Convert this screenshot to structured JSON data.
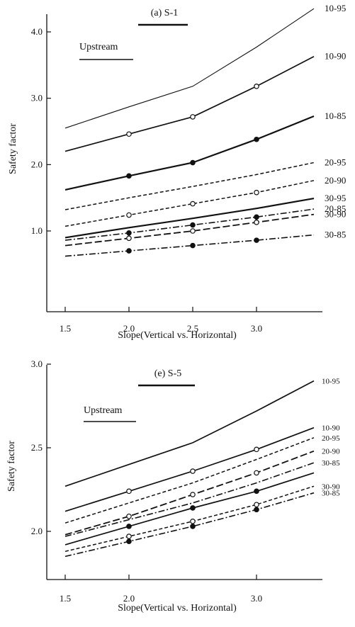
{
  "chart_data": [
    {
      "type": "line",
      "title": "(a) S-1",
      "annotation": "Upstream",
      "xlabel": "Slope(Vertical vs. Horizontal)",
      "ylabel": "Safety factor",
      "x_ticks": [
        "1.5",
        "2.0",
        "2.5",
        "3.0"
      ],
      "y_ticks": [
        "1.0",
        "2.0",
        "3.0",
        "4.0"
      ],
      "xlim": [
        1.3,
        3.5
      ],
      "ylim": [
        0.0,
        4.15
      ],
      "legend": "series names printed at right end of each line",
      "series": [
        {
          "name": "10-95",
          "style": "solid-thin",
          "marker": "none",
          "x": [
            1.5,
            2.0,
            2.5,
            3.0,
            3.45
          ],
          "values": [
            2.55,
            2.87,
            3.18,
            3.77,
            4.35
          ]
        },
        {
          "name": "10-90",
          "style": "solid",
          "marker": "open",
          "x": [
            1.5,
            2.0,
            2.5,
            3.0,
            3.45
          ],
          "values": [
            2.2,
            2.46,
            2.72,
            3.18,
            3.63
          ]
        },
        {
          "name": "10-85",
          "style": "solid-thick",
          "marker": "filled",
          "x": [
            1.5,
            2.0,
            2.5,
            3.0,
            3.45
          ],
          "values": [
            1.62,
            1.83,
            2.03,
            2.38,
            2.73
          ]
        },
        {
          "name": "20-95",
          "style": "dashed",
          "marker": "none",
          "x": [
            1.5,
            2.0,
            2.5,
            3.0,
            3.45
          ],
          "values": [
            1.32,
            1.5,
            1.67,
            1.85,
            2.03
          ]
        },
        {
          "name": "20-90",
          "style": "dashed",
          "marker": "open",
          "x": [
            1.5,
            2.0,
            2.5,
            3.0,
            3.45
          ],
          "values": [
            1.07,
            1.24,
            1.41,
            1.58,
            1.76
          ]
        },
        {
          "name": "30-95",
          "style": "solid-thick",
          "marker": "none",
          "x": [
            1.5,
            2.0,
            2.5,
            3.0,
            3.45
          ],
          "values": [
            0.9,
            1.05,
            1.19,
            1.34,
            1.49
          ]
        },
        {
          "name": "20-85",
          "style": "dash-dot",
          "marker": "filled",
          "x": [
            1.5,
            2.0,
            2.5,
            3.0,
            3.45
          ],
          "values": [
            0.86,
            0.97,
            1.09,
            1.21,
            1.33
          ]
        },
        {
          "name": "30-90",
          "style": "long-dash",
          "marker": "open",
          "x": [
            1.5,
            2.0,
            2.5,
            3.0,
            3.45
          ],
          "values": [
            0.78,
            0.89,
            1.0,
            1.13,
            1.25
          ]
        },
        {
          "name": "30-85",
          "style": "dash-dot",
          "marker": "filled",
          "x": [
            1.5,
            2.0,
            2.5,
            3.0,
            3.45
          ],
          "values": [
            0.62,
            0.7,
            0.78,
            0.86,
            0.94
          ]
        }
      ]
    },
    {
      "type": "line",
      "title": "(e) S-5",
      "annotation": "Upstream",
      "xlabel": "Slope(Vertical vs. Horizontal)",
      "ylabel": "Safety factor",
      "x_ticks": [
        "1.5",
        "2.0",
        "3.0"
      ],
      "y_ticks": [
        "2.0",
        "2.5",
        "3.0"
      ],
      "xlim": [
        1.38,
        3.55
      ],
      "ylim": [
        1.6,
        3.05
      ],
      "legend": "series names printed at right end of each line",
      "series": [
        {
          "name": "10-95",
          "style": "solid",
          "marker": "none",
          "x": [
            1.5,
            2.0,
            2.5,
            3.0,
            3.45
          ],
          "values": [
            2.27,
            2.4,
            2.53,
            2.72,
            2.9
          ]
        },
        {
          "name": "10-90",
          "style": "solid",
          "marker": "open",
          "x": [
            1.5,
            2.0,
            2.5,
            3.0,
            3.45
          ],
          "values": [
            2.12,
            2.24,
            2.36,
            2.49,
            2.62
          ]
        },
        {
          "name": "20-95",
          "style": "dashed",
          "marker": "none",
          "x": [
            1.5,
            2.0,
            2.5,
            3.0,
            3.45
          ],
          "values": [
            2.05,
            2.17,
            2.29,
            2.43,
            2.56
          ]
        },
        {
          "name": "20-90",
          "style": "long-dash",
          "marker": "open",
          "x": [
            1.5,
            2.0,
            2.5,
            3.0,
            3.45
          ],
          "values": [
            1.98,
            2.09,
            2.22,
            2.35,
            2.48
          ]
        },
        {
          "name": "30-85",
          "style": "dash-dot",
          "marker": "none",
          "x": [
            1.5,
            2.0,
            2.5,
            3.0,
            3.45
          ],
          "values": [
            1.97,
            2.07,
            2.17,
            2.29,
            2.41
          ]
        },
        {
          "name": "",
          "style": "solid",
          "marker": "filled",
          "x": [
            1.5,
            2.0,
            2.5,
            3.0,
            3.45
          ],
          "values": [
            1.92,
            2.03,
            2.14,
            2.24,
            2.35
          ]
        },
        {
          "name": "30-90",
          "style": "dashed",
          "marker": "open",
          "x": [
            1.5,
            2.0,
            2.5,
            3.0,
            3.45
          ],
          "values": [
            1.88,
            1.97,
            2.06,
            2.16,
            2.27
          ]
        },
        {
          "name": "30-85",
          "style": "dash-dot",
          "marker": "filled",
          "x": [
            1.5,
            2.0,
            2.5,
            3.0,
            3.45
          ],
          "values": [
            1.85,
            1.94,
            2.03,
            2.13,
            2.23
          ]
        }
      ]
    }
  ]
}
